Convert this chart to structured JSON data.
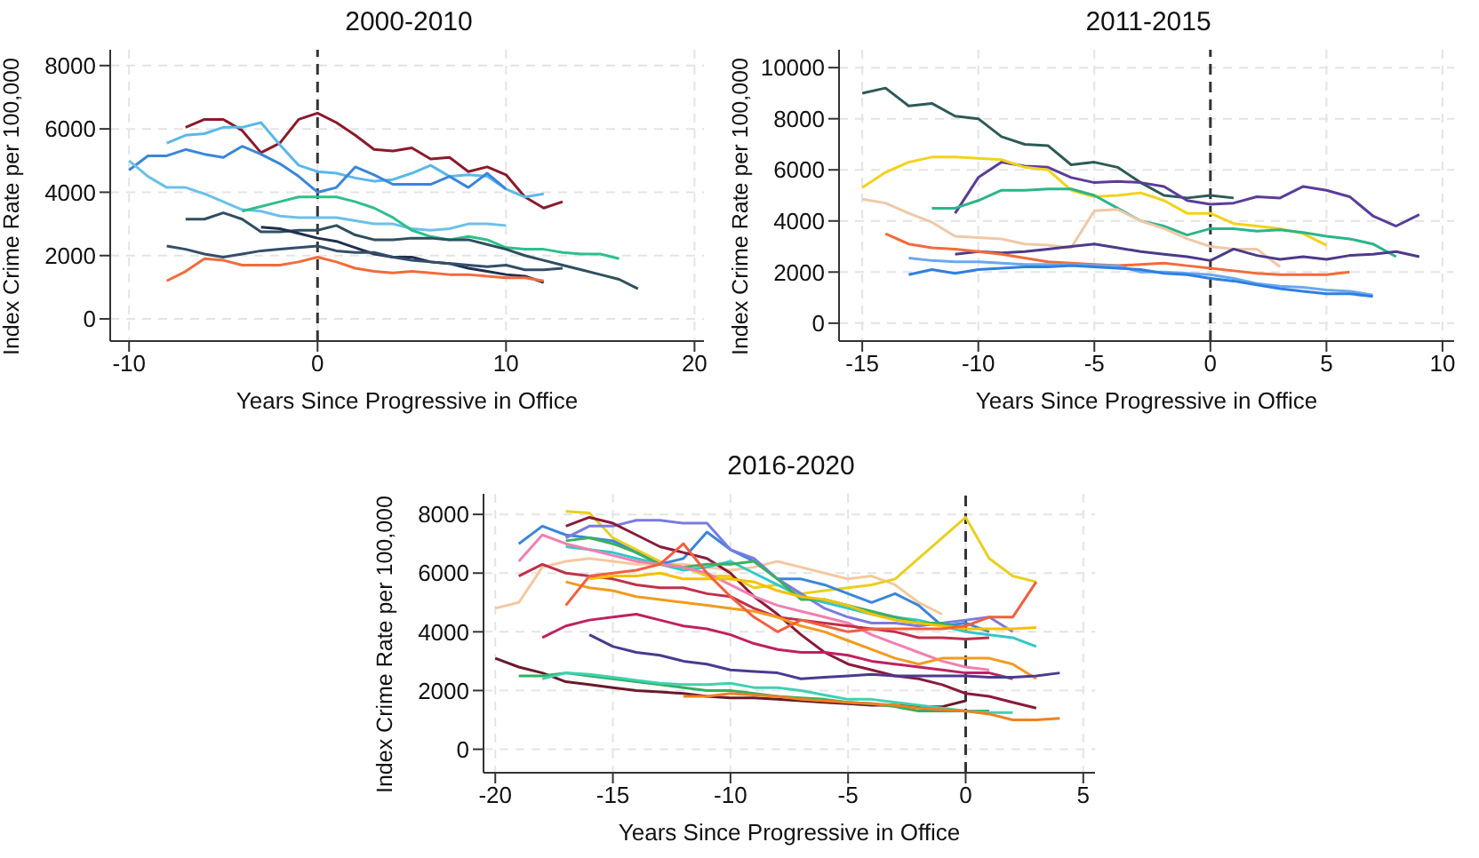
{
  "chart_data": [
    {
      "type": "line",
      "title": "2000-2010",
      "xlabel": "Years Since Progressive in Office",
      "ylabel": "Index Crime Rate per 100,000",
      "xlim": [
        -11,
        20.5
      ],
      "xticks": [
        -10,
        0,
        10,
        20
      ],
      "ylim": [
        -700,
        8500
      ],
      "yticks": [
        0,
        2000,
        4000,
        6000,
        8000
      ],
      "grid": true,
      "marker": "none",
      "line_style": "solid",
      "ref_lines": [
        {
          "axis": "x",
          "value": 0,
          "color": "#333333",
          "line_style": "dashed"
        }
      ],
      "series": [
        {
          "color": "#8b1a2b",
          "x": [
            -7,
            -6,
            -5,
            -4,
            -3,
            -2,
            -1,
            0,
            1,
            2,
            3,
            4,
            5,
            6,
            7,
            8,
            9,
            10,
            11,
            12,
            13
          ],
          "values": [
            6050,
            6300,
            6300,
            5950,
            5250,
            5550,
            6300,
            6500,
            6200,
            5800,
            5350,
            5300,
            5400,
            5050,
            5100,
            4650,
            4800,
            4550,
            3850,
            3500,
            3700
          ]
        },
        {
          "color": "#5bb8e8",
          "x": [
            -8,
            -7,
            -6,
            -5,
            -4,
            -3,
            -2,
            -1,
            0,
            1,
            2,
            3,
            4,
            5,
            6,
            7,
            8,
            9,
            10,
            11,
            12
          ],
          "values": [
            5550,
            5800,
            5850,
            6050,
            6050,
            6200,
            5500,
            4850,
            4650,
            4600,
            4450,
            4350,
            4400,
            4600,
            4850,
            4500,
            4550,
            4500,
            4100,
            3850,
            3950
          ]
        },
        {
          "color": "#3a86d9",
          "x": [
            -10,
            -9,
            -8,
            -7,
            -6,
            -5,
            -4,
            -3,
            -2,
            -1,
            0,
            1,
            2,
            3,
            4,
            5,
            6,
            7,
            8,
            9,
            10
          ],
          "values": [
            4700,
            5150,
            5150,
            5350,
            5200,
            5100,
            5450,
            5200,
            4900,
            4500,
            4000,
            4150,
            4800,
            4550,
            4250,
            4250,
            4250,
            4500,
            4150,
            4600,
            4100
          ]
        },
        {
          "color": "#6cc0e8",
          "x": [
            -10,
            -9,
            -8,
            -7,
            -6,
            -5,
            -4,
            -3,
            -2,
            -1,
            0,
            1,
            2,
            3,
            4,
            5,
            6,
            7,
            8,
            9,
            10
          ],
          "values": [
            5000,
            4500,
            4150,
            4150,
            3950,
            3700,
            3450,
            3400,
            3250,
            3200,
            3200,
            3200,
            3100,
            3000,
            3000,
            2850,
            2800,
            2850,
            3000,
            3000,
            2950
          ]
        },
        {
          "color": "#2ec08a",
          "x": [
            -4,
            -3,
            -2,
            -1,
            0,
            1,
            2,
            3,
            4,
            5,
            6,
            7,
            8,
            9,
            10,
            11,
            12,
            13,
            14,
            15,
            16
          ],
          "values": [
            3400,
            3550,
            3700,
            3850,
            3850,
            3850,
            3700,
            3500,
            3200,
            2800,
            2600,
            2500,
            2600,
            2500,
            2250,
            2200,
            2200,
            2100,
            2050,
            2050,
            1900
          ]
        },
        {
          "color": "#2f4f5f",
          "x": [
            -7,
            -6,
            -5,
            -4,
            -3,
            -2,
            -1,
            0,
            1,
            2,
            3,
            4,
            5,
            6,
            7,
            8,
            9,
            10,
            11,
            12,
            13,
            14,
            15,
            16,
            17
          ],
          "values": [
            3150,
            3150,
            3350,
            3150,
            2750,
            2750,
            2800,
            2800,
            2950,
            2650,
            2500,
            2500,
            2550,
            2550,
            2500,
            2500,
            2350,
            2200,
            2000,
            1850,
            1700,
            1550,
            1400,
            1250,
            950
          ]
        },
        {
          "color": "#1f3050",
          "x": [
            -3,
            -2,
            -1,
            0,
            1,
            2,
            3,
            4,
            5,
            6,
            7,
            8,
            9,
            10,
            11,
            12
          ],
          "values": [
            2900,
            2850,
            2700,
            2550,
            2450,
            2250,
            2050,
            1950,
            1950,
            1800,
            1750,
            1600,
            1500,
            1400,
            1350,
            1150
          ]
        },
        {
          "color": "#344e6a",
          "x": [
            -8,
            -7,
            -6,
            -5,
            -4,
            -3,
            -2,
            -1,
            0,
            1,
            2,
            3,
            4,
            5,
            6,
            7,
            8,
            9,
            10,
            11,
            12,
            13
          ],
          "values": [
            2300,
            2200,
            2050,
            1950,
            2050,
            2150,
            2200,
            2250,
            2300,
            2150,
            2100,
            2100,
            1950,
            1850,
            1800,
            1750,
            1700,
            1650,
            1700,
            1550,
            1550,
            1600
          ]
        },
        {
          "color": "#f26b3a",
          "x": [
            -8,
            -7,
            -6,
            -5,
            -4,
            -3,
            -2,
            -1,
            0,
            1,
            2,
            3,
            4,
            5,
            6,
            7,
            8,
            9,
            10,
            11,
            12
          ],
          "values": [
            1200,
            1500,
            1900,
            1850,
            1700,
            1700,
            1700,
            1800,
            1950,
            1800,
            1600,
            1500,
            1450,
            1500,
            1450,
            1400,
            1400,
            1350,
            1300,
            1300,
            1200
          ]
        }
      ]
    },
    {
      "type": "line",
      "title": "2011-2015",
      "xlabel": "Years Since Progressive in Office",
      "ylabel": "Index Crime Rate per 100,000",
      "xlim": [
        -16,
        10.5
      ],
      "xticks": [
        -15,
        -10,
        -5,
        0,
        5,
        10
      ],
      "ylim": [
        -700,
        10700
      ],
      "yticks": [
        0,
        2000,
        4000,
        6000,
        8000,
        10000
      ],
      "grid": true,
      "marker": "none",
      "line_style": "solid",
      "ref_lines": [
        {
          "axis": "x",
          "value": 0,
          "color": "#333333",
          "line_style": "dashed"
        }
      ],
      "series": [
        {
          "color": "#2e5a55",
          "x": [
            -15,
            -14,
            -13,
            -12,
            -11,
            -10,
            -9,
            -8,
            -7,
            -6,
            -5,
            -4,
            -3,
            -2,
            -1,
            0,
            1
          ],
          "values": [
            9000,
            9200,
            8500,
            8600,
            8100,
            8000,
            7300,
            7000,
            6950,
            6200,
            6300,
            6100,
            5500,
            5000,
            4900,
            5000,
            4900
          ]
        },
        {
          "color": "#5a3d9a",
          "x": [
            -11,
            -10,
            -9,
            -8,
            -7,
            -6,
            -5,
            -4,
            -3,
            -2,
            -1,
            0,
            1,
            2,
            3,
            4,
            5,
            6,
            7,
            8,
            9
          ],
          "values": [
            4300,
            5700,
            6300,
            6150,
            6100,
            5700,
            5500,
            5550,
            5500,
            5350,
            4800,
            4650,
            4700,
            4950,
            4900,
            5350,
            5200,
            4950,
            4200,
            3800,
            4250
          ]
        },
        {
          "color": "#f2d21a",
          "x": [
            -15,
            -14,
            -13,
            -12,
            -11,
            -10,
            -9,
            -8,
            -7,
            -6,
            -5,
            -4,
            -3,
            -2,
            -1,
            0,
            1,
            2,
            3,
            4,
            5
          ],
          "values": [
            5300,
            5900,
            6300,
            6500,
            6500,
            6450,
            6400,
            6100,
            6000,
            5200,
            4950,
            5000,
            5100,
            4800,
            4300,
            4300,
            3900,
            3800,
            3700,
            3500,
            3050
          ]
        },
        {
          "color": "#2bb58a",
          "x": [
            -12,
            -11,
            -10,
            -9,
            -8,
            -7,
            -6,
            -5,
            -4,
            -3,
            -2,
            -1,
            0,
            1,
            2,
            3,
            4,
            5,
            6,
            7,
            8
          ],
          "values": [
            4500,
            4500,
            4800,
            5200,
            5200,
            5250,
            5250,
            5000,
            4500,
            4000,
            3800,
            3450,
            3700,
            3700,
            3600,
            3650,
            3550,
            3400,
            3300,
            3100,
            2600
          ]
        },
        {
          "color": "#f0c8a8",
          "x": [
            -15,
            -14,
            -13,
            -12,
            -11,
            -10,
            -9,
            -8,
            -7,
            -6,
            -5,
            -4,
            -3,
            -2,
            -1,
            0,
            1,
            2,
            3
          ],
          "values": [
            4850,
            4700,
            4300,
            3950,
            3400,
            3350,
            3300,
            3100,
            3050,
            2950,
            4400,
            4450,
            4000,
            3700,
            3300,
            3000,
            2900,
            2900,
            2200
          ]
        },
        {
          "color": "#4b3a8a",
          "x": [
            -11,
            -10,
            -9,
            -8,
            -7,
            -6,
            -5,
            -4,
            -3,
            -2,
            -1,
            0,
            1,
            2,
            3,
            4,
            5,
            6,
            7,
            8,
            9
          ],
          "values": [
            2700,
            2800,
            2750,
            2800,
            2900,
            3000,
            3100,
            2950,
            2800,
            2700,
            2600,
            2450,
            2900,
            2650,
            2500,
            2600,
            2500,
            2650,
            2700,
            2800,
            2600
          ]
        },
        {
          "color": "#f26b3a",
          "x": [
            -14,
            -13,
            -12,
            -11,
            -10,
            -9,
            -8,
            -7,
            -6,
            -5,
            -4,
            -3,
            -2,
            -1,
            0,
            1,
            2,
            3,
            4,
            5,
            6
          ],
          "values": [
            3500,
            3100,
            2950,
            2900,
            2800,
            2700,
            2550,
            2400,
            2350,
            2300,
            2250,
            2300,
            2350,
            2250,
            2150,
            2050,
            1950,
            1900,
            1900,
            1900,
            2000
          ]
        },
        {
          "color": "#6aa8f0",
          "x": [
            -13,
            -12,
            -11,
            -10,
            -9,
            -8,
            -7,
            -6,
            -5,
            -4,
            -3,
            -2,
            -1,
            0,
            1,
            2,
            3,
            4,
            5,
            6,
            7
          ],
          "values": [
            2550,
            2450,
            2400,
            2400,
            2350,
            2300,
            2300,
            2300,
            2250,
            2250,
            2000,
            2000,
            1950,
            1900,
            1750,
            1550,
            1450,
            1400,
            1300,
            1250,
            1100
          ]
        },
        {
          "color": "#2f7fe0",
          "x": [
            -13,
            -12,
            -11,
            -10,
            -9,
            -8,
            -7,
            -6,
            -5,
            -4,
            -3,
            -2,
            -1,
            0,
            1,
            2,
            3,
            4,
            5,
            6,
            7
          ],
          "values": [
            1900,
            2100,
            1950,
            2100,
            2150,
            2200,
            2200,
            2250,
            2200,
            2150,
            2100,
            1950,
            1900,
            1750,
            1650,
            1500,
            1350,
            1250,
            1150,
            1150,
            1050
          ]
        }
      ]
    },
    {
      "type": "line",
      "title": "2016-2020",
      "xlabel": "Years Since Progressive in Office",
      "ylabel": "Index Crime Rate per 100,000",
      "xlim": [
        -20.5,
        5.5
      ],
      "xticks": [
        -20,
        -15,
        -10,
        -5,
        0,
        5
      ],
      "ylim": [
        -800,
        8700
      ],
      "yticks": [
        0,
        2000,
        4000,
        6000,
        8000
      ],
      "grid": true,
      "marker": "none",
      "line_style": "solid",
      "ref_lines": [
        {
          "axis": "x",
          "value": 0,
          "color": "#333333",
          "line_style": "dashed"
        }
      ],
      "series": [
        {
          "color": "#f4c8a0",
          "x": [
            -20,
            -19,
            -18,
            -17,
            -16,
            -15,
            -14,
            -13,
            -12,
            -11,
            -10,
            -9,
            -8,
            -7,
            -6,
            -5,
            -4,
            -3,
            -2,
            -1
          ],
          "values": [
            4800,
            5000,
            6200,
            6400,
            6500,
            6400,
            6300,
            6300,
            6300,
            6200,
            6100,
            6200,
            6400,
            6200,
            6000,
            5800,
            5900,
            5600,
            5000,
            4600
          ]
        },
        {
          "color": "#e8d020",
          "x": [
            -17,
            -16,
            -15,
            -14,
            -13,
            -12,
            -11,
            -10,
            -9,
            -8,
            -7,
            -6,
            -5,
            -4,
            -3,
            -2,
            -1,
            0,
            1,
            2,
            3
          ],
          "values": [
            8100,
            8050,
            7200,
            6800,
            6400,
            6200,
            5900,
            5900,
            5500,
            5600,
            5300,
            5400,
            5500,
            5600,
            5800,
            6500,
            7200,
            7900,
            6500,
            5900,
            5700
          ]
        },
        {
          "color": "#3a86d9",
          "x": [
            -19,
            -18,
            -17,
            -16,
            -15,
            -14,
            -13,
            -12,
            -11,
            -10,
            -9,
            -8,
            -7,
            -6,
            -5,
            -4,
            -3,
            -2,
            -1,
            0,
            1
          ],
          "values": [
            7000,
            7600,
            7300,
            7200,
            7100,
            6700,
            6300,
            6500,
            7400,
            6800,
            6400,
            5800,
            5800,
            5600,
            5300,
            5000,
            5300,
            4900,
            4200,
            4300,
            4000
          ]
        },
        {
          "color": "#7b7be0",
          "x": [
            -17,
            -16,
            -15,
            -14,
            -13,
            -12,
            -11,
            -10,
            -9,
            -8,
            -7,
            -6,
            -5,
            -4,
            -3,
            -2,
            -1,
            0,
            1,
            2
          ],
          "values": [
            7200,
            7600,
            7600,
            7800,
            7800,
            7700,
            7700,
            6800,
            6500,
            5800,
            5300,
            4800,
            4500,
            4300,
            4300,
            4200,
            4300,
            4400,
            4500,
            4000
          ]
        },
        {
          "color": "#8b1a3a",
          "x": [
            -17,
            -16,
            -15,
            -14,
            -13,
            -12,
            -11,
            -10,
            -9,
            -8,
            -7,
            -6,
            -5,
            -4,
            -3,
            -2,
            -1,
            0,
            1,
            2,
            3
          ],
          "values": [
            7600,
            7900,
            7700,
            7300,
            6900,
            6700,
            6500,
            6000,
            5200,
            4600,
            3900,
            3300,
            2900,
            2700,
            2500,
            2400,
            2200,
            1900,
            1800,
            1600,
            1400
          ]
        },
        {
          "color": "#30c8c8",
          "x": [
            -17,
            -16,
            -15,
            -14,
            -13,
            -12,
            -11,
            -10,
            -9,
            -8,
            -7,
            -6,
            -5,
            -4,
            -3,
            -2,
            -1,
            0,
            1,
            2,
            3
          ],
          "values": [
            6900,
            6800,
            6700,
            6500,
            6300,
            6100,
            6200,
            6400,
            6000,
            5600,
            5200,
            5000,
            4800,
            4600,
            4500,
            4400,
            4200,
            4000,
            3900,
            3800,
            3500
          ]
        },
        {
          "color": "#3cb060",
          "x": [
            -17,
            -16,
            -15,
            -14,
            -13,
            -12,
            -11,
            -10,
            -9,
            -8,
            -7,
            -6,
            -5,
            -4,
            -3,
            -2,
            -1,
            0
          ],
          "values": [
            7100,
            7200,
            7000,
            6700,
            6300,
            6200,
            6300,
            6300,
            6400,
            5800,
            5100,
            5100,
            4900,
            4700,
            4500,
            4300,
            4300,
            4100
          ]
        },
        {
          "color": "#f080b0",
          "x": [
            -19,
            -18,
            -17,
            -16,
            -15,
            -14,
            -13,
            -12,
            -11,
            -10,
            -9,
            -8,
            -7,
            -6,
            -5,
            -4,
            -3,
            -2,
            -1,
            0,
            1
          ],
          "values": [
            6400,
            7300,
            7000,
            6800,
            6600,
            6400,
            6300,
            6200,
            6000,
            5600,
            5200,
            4900,
            4700,
            4500,
            4300,
            3900,
            3600,
            3300,
            3000,
            2800,
            2700
          ]
        },
        {
          "color": "#c0304a",
          "x": [
            -19,
            -18,
            -17,
            -16,
            -15,
            -14,
            -13,
            -12,
            -11,
            -10,
            -9,
            -8,
            -7,
            -6,
            -5,
            -4,
            -3,
            -2,
            -1,
            0,
            1
          ],
          "values": [
            5900,
            6300,
            6000,
            5900,
            5800,
            5600,
            5500,
            5500,
            5300,
            5200,
            4800,
            4500,
            4400,
            4300,
            4200,
            4100,
            4000,
            3800,
            3800,
            3750,
            3800
          ]
        },
        {
          "color": "#f5c000",
          "x": [
            -16,
            -15,
            -14,
            -13,
            -12,
            -11,
            -10,
            -9,
            -8,
            -7,
            -6,
            -5,
            -4,
            -3,
            -2,
            -1,
            0,
            1,
            2,
            3
          ],
          "values": [
            5800,
            5900,
            5900,
            6000,
            5800,
            5800,
            5800,
            5700,
            5400,
            5200,
            5100,
            4900,
            4600,
            4400,
            4300,
            4200,
            4100,
            4100,
            4100,
            4150
          ]
        },
        {
          "color": "#f39a20",
          "x": [
            -17,
            -16,
            -15,
            -14,
            -13,
            -12,
            -11,
            -10,
            -9,
            -8,
            -7,
            -6,
            -5,
            -4,
            -3,
            -2,
            -1,
            0,
            1,
            2,
            3
          ],
          "values": [
            5700,
            5500,
            5400,
            5200,
            5100,
            5000,
            4900,
            4800,
            4700,
            4500,
            4200,
            4000,
            3700,
            3400,
            3100,
            2900,
            3100,
            3100,
            3100,
            2900,
            2400
          ]
        },
        {
          "color": "#f06040",
          "x": [
            -17,
            -16,
            -15,
            -14,
            -13,
            -12,
            -11,
            -10,
            -9,
            -8,
            -7,
            -6,
            -5,
            -4,
            -3,
            -2,
            -1,
            0,
            1,
            2,
            3
          ],
          "values": [
            4900,
            5900,
            6000,
            6100,
            6300,
            7000,
            6000,
            5200,
            4500,
            4000,
            4400,
            4200,
            4000,
            4100,
            4100,
            4100,
            4100,
            4200,
            4500,
            4500,
            5700
          ]
        },
        {
          "color": "#c02060",
          "x": [
            -18,
            -17,
            -16,
            -15,
            -14,
            -13,
            -12,
            -11,
            -10,
            -9,
            -8,
            -7,
            -6,
            -5,
            -4,
            -3,
            -2,
            -1,
            0,
            1,
            2
          ],
          "values": [
            3800,
            4200,
            4400,
            4500,
            4600,
            4400,
            4200,
            4100,
            3900,
            3600,
            3400,
            3300,
            3300,
            3200,
            3000,
            2900,
            2800,
            2700,
            2600,
            2600,
            2400
          ]
        },
        {
          "color": "#4a3a90",
          "x": [
            -16,
            -15,
            -14,
            -13,
            -12,
            -11,
            -10,
            -9,
            -8,
            -7,
            -6,
            -5,
            -4,
            -3,
            -2,
            -1,
            0,
            1,
            2,
            3,
            4
          ],
          "values": [
            3900,
            3500,
            3300,
            3200,
            3000,
            2900,
            2700,
            2650,
            2600,
            2400,
            2450,
            2500,
            2550,
            2500,
            2500,
            2500,
            2500,
            2450,
            2450,
            2500,
            2600
          ]
        },
        {
          "color": "#6a1a2a",
          "x": [
            -20,
            -19,
            -18,
            -17,
            -16,
            -15,
            -14,
            -13,
            -12,
            -11,
            -10,
            -9,
            -8,
            -7,
            -6,
            -5,
            -4,
            -3,
            -2,
            -1,
            0
          ],
          "values": [
            3100,
            2800,
            2600,
            2300,
            2200,
            2100,
            2000,
            1950,
            1900,
            1800,
            1750,
            1750,
            1700,
            1650,
            1600,
            1550,
            1500,
            1500,
            1450,
            1450,
            1650
          ]
        },
        {
          "color": "#30b060",
          "x": [
            -19,
            -18,
            -17,
            -16,
            -15,
            -14,
            -13,
            -12,
            -11,
            -10,
            -9,
            -8,
            -7,
            -6,
            -5,
            -4,
            -3,
            -2,
            -1,
            0,
            1
          ],
          "values": [
            2500,
            2500,
            2600,
            2500,
            2400,
            2300,
            2200,
            2100,
            2000,
            2000,
            1900,
            1800,
            1750,
            1700,
            1600,
            1550,
            1450,
            1300,
            1300,
            1300,
            1300
          ]
        },
        {
          "color": "#40d0b0",
          "x": [
            -18,
            -17,
            -16,
            -15,
            -14,
            -13,
            -12,
            -11,
            -10,
            -9,
            -8,
            -7,
            -6,
            -5,
            -4,
            -3,
            -2,
            -1,
            0,
            1,
            2
          ],
          "values": [
            2400,
            2600,
            2550,
            2450,
            2350,
            2250,
            2200,
            2200,
            2250,
            2100,
            2100,
            2000,
            1850,
            1700,
            1700,
            1600,
            1500,
            1400,
            1300,
            1250,
            1250
          ]
        },
        {
          "color": "#f08020",
          "x": [
            -12,
            -11,
            -10,
            -9,
            -8,
            -7,
            -6,
            -5,
            -4,
            -3,
            -2,
            -1,
            0,
            1,
            2,
            3,
            4
          ],
          "values": [
            1800,
            1800,
            1900,
            1850,
            1800,
            1700,
            1650,
            1600,
            1550,
            1500,
            1400,
            1350,
            1300,
            1200,
            1000,
            1000,
            1050
          ]
        }
      ]
    }
  ]
}
